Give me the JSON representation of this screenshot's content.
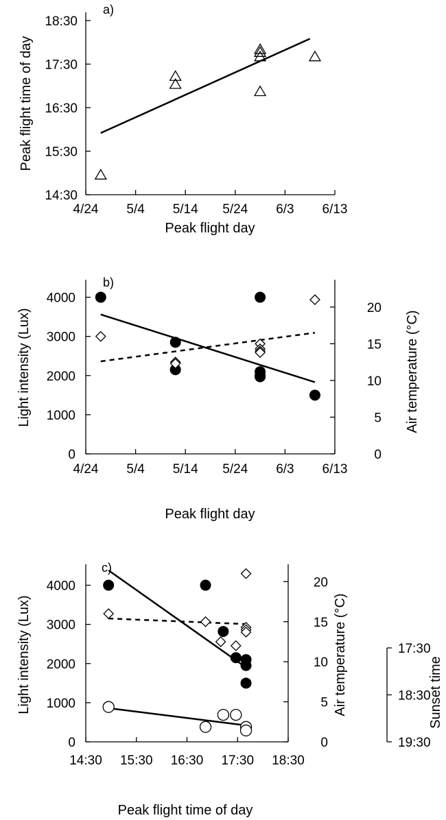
{
  "figure": {
    "panels": [
      "a)",
      "b)",
      "c)"
    ]
  },
  "chart_data": [
    {
      "id": "a",
      "type": "scatter",
      "panel_label": "a)",
      "xlabel": "Peak flight day",
      "ylabel": "Peak flight time of day",
      "x_ticks": [
        "4/24",
        "5/4",
        "5/14",
        "5/24",
        "6/3",
        "6/13"
      ],
      "y_ticks": [
        "14:30",
        "15:30",
        "16:30",
        "17:30",
        "18:30"
      ],
      "x_domain": [
        "4/24",
        "6/13"
      ],
      "y_domain": [
        "14:30",
        "18:30"
      ],
      "points": [
        {
          "x": "4/27",
          "y": "14:57"
        },
        {
          "x": "5/12",
          "y": "17:13"
        },
        {
          "x": "5/12",
          "y": "17:02"
        },
        {
          "x": "5/29",
          "y": "17:50"
        },
        {
          "x": "5/29",
          "y": "17:46"
        },
        {
          "x": "5/29",
          "y": "17:40"
        },
        {
          "x": "5/29",
          "y": "16:52"
        },
        {
          "x": "6/9",
          "y": "17:40"
        }
      ],
      "trendline": [
        {
          "x": "4/27",
          "y": "15:55"
        },
        {
          "x": "6/8",
          "y": "18:05"
        }
      ],
      "marker": "open-triangle"
    },
    {
      "id": "b",
      "type": "scatter",
      "panel_label": "b)",
      "xlabel": "Peak flight day",
      "ylabel": "Light intensity (Lux)",
      "y2label": "Air temperature (°C)",
      "x_ticks": [
        "4/24",
        "5/4",
        "5/14",
        "5/24",
        "6/3",
        "6/13"
      ],
      "y_ticks": [
        "0",
        "1000",
        "2000",
        "3000",
        "4000"
      ],
      "y2_ticks": [
        "0",
        "5",
        "10",
        "15",
        "20"
      ],
      "x_domain": [
        "4/24",
        "6/13"
      ],
      "y_domain": [
        0,
        4500
      ],
      "y2_domain": [
        0,
        24
      ],
      "series": [
        {
          "axis": "left",
          "marker": "filled-circle",
          "points": [
            {
              "x": "4/27",
              "y": 4000
            },
            {
              "x": "5/12",
              "y": 2850
            },
            {
              "x": "5/12",
              "y": 2150
            },
            {
              "x": "5/29",
              "y": 4000
            },
            {
              "x": "5/29",
              "y": 2100
            },
            {
              "x": "5/29",
              "y": 2000
            },
            {
              "x": "5/29",
              "y": 1970
            },
            {
              "x": "6/9",
              "y": 1500
            }
          ],
          "trendline": [
            {
              "x": "4/27",
              "y": 3560
            },
            {
              "x": "6/9",
              "y": 1830
            }
          ],
          "trend_style": "solid"
        },
        {
          "axis": "right",
          "marker": "open-diamond",
          "points": [
            {
              "x": "4/27",
              "y": 16.0
            },
            {
              "x": "5/12",
              "y": 12.5
            },
            {
              "x": "5/12",
              "y": 12.3
            },
            {
              "x": "5/29",
              "y": 15.0
            },
            {
              "x": "5/29",
              "y": 14.3
            },
            {
              "x": "5/29",
              "y": 14.0
            },
            {
              "x": "5/29",
              "y": 13.8
            },
            {
              "x": "6/9",
              "y": 21.0
            }
          ],
          "trendline": [
            {
              "x": "4/27",
              "y": 12.6
            },
            {
              "x": "6/9",
              "y": 16.5
            }
          ],
          "trend_style": "dashed"
        }
      ]
    },
    {
      "id": "c",
      "type": "scatter",
      "panel_label": "c)",
      "xlabel": "Peak flight time of day",
      "ylabel": "Light intensity (Lux)",
      "y2label": "Air temperature (°C)",
      "y3label": "Sunset time",
      "x_ticks": [
        "14:30",
        "15:30",
        "16:30",
        "17:30",
        "18:30"
      ],
      "y_ticks": [
        "0",
        "1000",
        "2000",
        "3000",
        "4000"
      ],
      "y2_ticks": [
        "0",
        "5",
        "10",
        "15",
        "20"
      ],
      "y3_ticks": [
        "17:30",
        "18:30",
        "19:30"
      ],
      "x_domain": [
        "14:30",
        "18:30"
      ],
      "y_domain": [
        0,
        4500
      ],
      "y2_domain": [
        0,
        22
      ],
      "series": [
        {
          "axis": "left",
          "marker": "filled-circle",
          "points": [
            {
              "x": "14:57",
              "y": 4000
            },
            {
              "x": "16:52",
              "y": 4000
            },
            {
              "x": "17:13",
              "y": 2820
            },
            {
              "x": "17:28",
              "y": 2150
            },
            {
              "x": "17:40",
              "y": 2100
            },
            {
              "x": "17:40",
              "y": 1950
            },
            {
              "x": "17:40",
              "y": 1500
            }
          ],
          "trendline": [
            {
              "x": "14:57",
              "y": 4380
            },
            {
              "x": "17:40",
              "y": 1900
            }
          ],
          "trend_style": "solid"
        },
        {
          "axis": "right",
          "marker": "open-diamond",
          "points": [
            {
              "x": "14:57",
              "y": 16.0
            },
            {
              "x": "16:52",
              "y": 15.0
            },
            {
              "x": "17:10",
              "y": 12.5
            },
            {
              "x": "17:28",
              "y": 12.0
            },
            {
              "x": "17:40",
              "y": 21.0
            },
            {
              "x": "17:40",
              "y": 14.3
            },
            {
              "x": "17:40",
              "y": 14.0
            },
            {
              "x": "17:40",
              "y": 13.7
            }
          ],
          "trendline": [
            {
              "x": "14:57",
              "y": 15.4
            },
            {
              "x": "17:40",
              "y": 14.7
            }
          ],
          "trend_style": "dashed"
        },
        {
          "axis": "sunset",
          "marker": "open-circle",
          "points": [
            {
              "x": "14:57",
              "y": 890
            },
            {
              "x": "16:52",
              "y": 380
            },
            {
              "x": "17:13",
              "y": 690
            },
            {
              "x": "17:28",
              "y": 690
            },
            {
              "x": "17:40",
              "y": 380
            },
            {
              "x": "17:40",
              "y": 290
            }
          ],
          "trendline": [
            {
              "x": "14:57",
              "y": 860
            },
            {
              "x": "17:40",
              "y": 420
            }
          ],
          "trend_style": "solid"
        }
      ]
    }
  ]
}
